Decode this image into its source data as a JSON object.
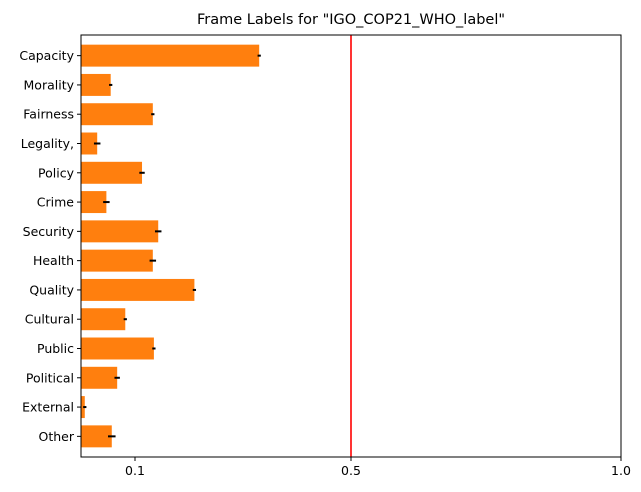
{
  "chart_data": {
    "type": "bar",
    "orientation": "horizontal",
    "title": "Frame Labels for \"IGO_COP21_WHO_label\"",
    "xlabel": "",
    "ylabel": "",
    "xlim": [
      0.0,
      1.0
    ],
    "xticks": [
      0.1,
      0.5,
      1.0
    ],
    "xtick_labels": [
      "0.1",
      "0.5",
      "1.0"
    ],
    "grid": false,
    "bar_color": "#ff7f0e",
    "error_color": "#000000",
    "reference_line": {
      "x": 0.5,
      "color": "#ff0000"
    },
    "categories": [
      "Capacity",
      "Morality",
      "Fairness",
      "Legality,",
      "Policy",
      "Crime",
      "Security",
      "Health",
      "Quality",
      "Cultural",
      "Public",
      "Political",
      "External",
      "Other"
    ],
    "values": [
      0.33,
      0.055,
      0.133,
      0.03,
      0.113,
      0.047,
      0.143,
      0.133,
      0.21,
      0.082,
      0.135,
      0.067,
      0.007,
      0.057
    ],
    "errors": [
      0.003,
      0.003,
      0.003,
      0.006,
      0.005,
      0.006,
      0.006,
      0.006,
      0.003,
      0.003,
      0.003,
      0.005,
      0.003,
      0.007
    ]
  }
}
